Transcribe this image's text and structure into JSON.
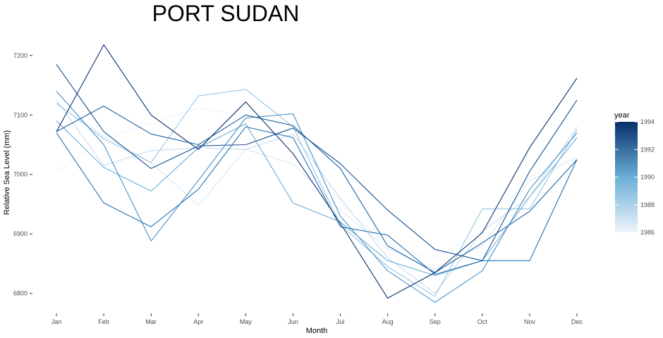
{
  "chart_data": {
    "type": "line",
    "title": "PORT SUDAN",
    "xlabel": "Month",
    "ylabel": "Relative Sea Level (mm)",
    "categories": [
      "Jan",
      "Feb",
      "Mar",
      "Apr",
      "May",
      "Jun",
      "Jul",
      "Aug",
      "Sep",
      "Oct",
      "Nov",
      "Dec"
    ],
    "ylim": [
      6770,
      7240
    ],
    "yticks": [
      6800,
      6900,
      7000,
      7100,
      7200
    ],
    "grid": false,
    "legend": {
      "title": "year",
      "placement": "right",
      "type": "colorbar",
      "range": [
        1986,
        1994
      ],
      "ticks": [
        1986,
        1988,
        1990,
        1992,
        1994
      ],
      "color_low": "#eef4fb",
      "color_high": "#08306b"
    },
    "series": [
      {
        "year": 1986,
        "values": [
          7005,
          7060,
          7085,
          7112,
          7098,
          7085,
          6952,
          6880,
          6860,
          6905,
          6995,
          7030
        ]
      },
      {
        "year": 1987,
        "values": [
          7118,
          7065,
          7020,
          6948,
          7042,
          7018,
          6940,
          6875,
          6840,
          6880,
          6990,
          7028
        ]
      },
      {
        "year": 1988,
        "values": [
          7125,
          7015,
          7040,
          7045,
          7042,
          7068,
          6960,
          6860,
          6800,
          6905,
          6962,
          7080
        ]
      },
      {
        "year": 1989,
        "values": [
          7120,
          7060,
          7020,
          7132,
          7143,
          7080,
          6915,
          6845,
          6795,
          6942,
          6942,
          7075
        ]
      },
      {
        "year": 1990,
        "values": [
          7090,
          7012,
          6972,
          7045,
          7085,
          6952,
          6920,
          6855,
          6830,
          6855,
          6962,
          7062
        ]
      },
      {
        "year": 1991,
        "values": [
          7140,
          7050,
          6888,
          6990,
          7095,
          7102,
          6930,
          6838,
          6785,
          6838,
          6975,
          7070
        ]
      },
      {
        "year": 1992,
        "values": [
          7070,
          6952,
          6912,
          6975,
          7080,
          7062,
          6912,
          6898,
          6832,
          6855,
          6855,
          7025
        ]
      },
      {
        "year": 1992.5,
        "values": [
          7072,
          7115,
          7068,
          7050,
          7100,
          7082,
          7010,
          6880,
          6835,
          6885,
          6938,
          7025
        ]
      },
      {
        "year": 1993,
        "values": [
          7185,
          7072,
          7010,
          7048,
          7050,
          7078,
          7018,
          6940,
          6874,
          6855,
          7005,
          7125
        ]
      },
      {
        "year": 1994,
        "values": [
          7072,
          7218,
          7100,
          7042,
          7122,
          7035,
          6918,
          6792,
          6835,
          6902,
          7045,
          7162
        ]
      }
    ]
  }
}
